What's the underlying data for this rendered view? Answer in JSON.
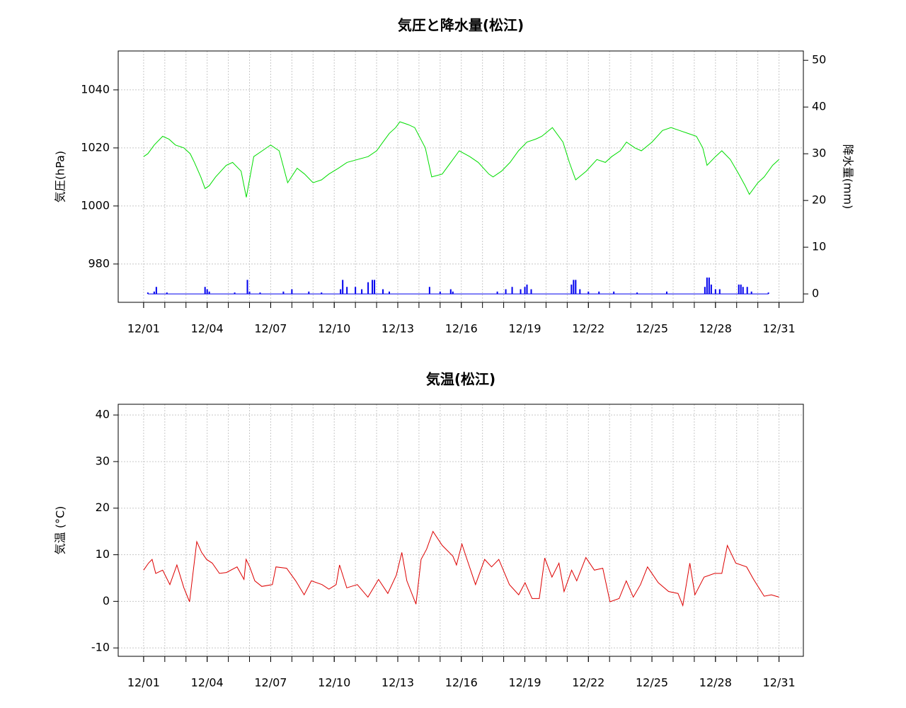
{
  "chart_data": [
    {
      "type": "line",
      "title": "気圧と降水量(松江)",
      "ylabel": "気圧(hPa)",
      "y2label": "降水量(mm)",
      "grid": true,
      "xlim": [
        -1.2,
        31.15
      ],
      "ylim": [
        966.8,
        1053.4
      ],
      "y2lim": [
        -1.8,
        52
      ],
      "xticks": [
        {
          "value": 0,
          "label": "12/01"
        },
        {
          "value": 3,
          "label": "12/04"
        },
        {
          "value": 6,
          "label": "12/07"
        },
        {
          "value": 9,
          "label": "12/10"
        },
        {
          "value": 12,
          "label": "12/13"
        },
        {
          "value": 15,
          "label": "12/16"
        },
        {
          "value": 18,
          "label": "12/19"
        },
        {
          "value": 21,
          "label": "12/22"
        },
        {
          "value": 24,
          "label": "12/25"
        },
        {
          "value": 27,
          "label": "12/28"
        },
        {
          "value": 30,
          "label": "12/31"
        }
      ],
      "xminorticks": [
        0,
        1,
        2,
        3,
        4,
        5,
        6,
        7,
        8,
        9,
        10,
        11,
        12,
        13,
        14,
        15,
        16,
        17,
        18,
        19,
        20,
        21,
        22,
        23,
        24,
        25,
        26,
        27,
        28,
        29,
        30
      ],
      "yticks": [
        980,
        1000,
        1020,
        1040
      ],
      "y2ticks": [
        0,
        10,
        20,
        30,
        40,
        50
      ],
      "series": [
        {
          "style": "line",
          "color": "#00dd00",
          "x": [
            0,
            0.2,
            0.5,
            0.9,
            1.2,
            1.5,
            1.9,
            2.2,
            2.4,
            2.7,
            2.9,
            3.1,
            3.4,
            3.9,
            4.2,
            4.6,
            4.85,
            5.2,
            5.6,
            6,
            6.4,
            6.8,
            7.25,
            7.6,
            8,
            8.4,
            8.75,
            9.2,
            9.6,
            10.1,
            10.6,
            11,
            11.3,
            11.6,
            11.9,
            12.1,
            12.5,
            12.8,
            13.3,
            13.6,
            14.1,
            14.5,
            14.9,
            15.4,
            15.8,
            16.3,
            16.5,
            16.9,
            17.3,
            17.7,
            18.1,
            18.5,
            18.8,
            19.3,
            19.8,
            20.1,
            20.4,
            20.9,
            21.4,
            21.8,
            22.1,
            22.5,
            22.8,
            23.2,
            23.5,
            24,
            24.5,
            24.9,
            25.3,
            25.7,
            26.1,
            26.4,
            26.6,
            27,
            27.3,
            27.7,
            28.1,
            28.4,
            28.6,
            29,
            29.3,
            29.7,
            30
          ],
          "values": [
            1017,
            1018,
            1021,
            1024,
            1023,
            1021,
            1020,
            1018,
            1015,
            1010,
            1006,
            1007,
            1010,
            1014,
            1015,
            1012,
            1003,
            1017,
            1019,
            1021,
            1019,
            1008,
            1013,
            1011,
            1008,
            1009,
            1011,
            1013,
            1015,
            1016,
            1017,
            1019,
            1022,
            1025,
            1027,
            1029,
            1028,
            1027,
            1020,
            1010,
            1011,
            1015,
            1019,
            1017,
            1015,
            1011,
            1010,
            1012,
            1015,
            1019,
            1022,
            1023,
            1024,
            1027,
            1022,
            1015,
            1009,
            1012,
            1016,
            1015,
            1017,
            1019,
            1022,
            1020,
            1019,
            1022,
            1026,
            1027,
            1026,
            1025,
            1024,
            1020,
            1014,
            1017,
            1019,
            1016,
            1011,
            1007,
            1004,
            1008,
            1010,
            1014,
            1016
          ]
        },
        {
          "style": "bars",
          "axis": "y2",
          "color": "#0000ee",
          "x": [
            0.2,
            0.5,
            0.6,
            1.1,
            2.9,
            3.0,
            3.1,
            4.3,
            4.9,
            5.0,
            5.5,
            6.6,
            7.0,
            7.8,
            8.4,
            9.3,
            9.4,
            9.6,
            10.0,
            10.3,
            10.6,
            10.8,
            10.9,
            11.3,
            11.6,
            13.5,
            14.0,
            14.5,
            14.6,
            16.7,
            17.1,
            17.4,
            17.8,
            18.0,
            18.1,
            18.3,
            20.2,
            20.3,
            20.4,
            20.6,
            21.0,
            21.5,
            22.2,
            23.3,
            24.7,
            26.5,
            26.6,
            26.7,
            26.8,
            27.0,
            27.2,
            28.1,
            28.2,
            28.3,
            28.5,
            28.7,
            29.5
          ],
          "values": [
            0.3,
            0.5,
            1.5,
            0.3,
            1.5,
            1,
            0.5,
            0.3,
            3,
            0.5,
            0.3,
            0.5,
            1,
            0.5,
            0.3,
            1,
            3,
            1.5,
            1.5,
            1,
            2.5,
            3,
            3,
            1,
            0.5,
            1.5,
            0.5,
            1,
            0.5,
            0.5,
            1,
            1.5,
            1,
            1.5,
            2,
            1,
            2,
            3,
            3,
            1,
            0.5,
            0.5,
            0.5,
            0.3,
            0.5,
            1.5,
            3.5,
            3.5,
            2,
            1,
            1,
            2,
            2,
            1.5,
            1.5,
            0.5,
            0.3
          ]
        }
      ]
    },
    {
      "type": "line",
      "title": "気温(松江)",
      "ylabel": "気温 (°C)",
      "grid": true,
      "xlim": [
        -1.2,
        31.15
      ],
      "ylim": [
        -11.8,
        42.3
      ],
      "xticks": [
        {
          "value": 0,
          "label": "12/01"
        },
        {
          "value": 3,
          "label": "12/04"
        },
        {
          "value": 6,
          "label": "12/07"
        },
        {
          "value": 9,
          "label": "12/10"
        },
        {
          "value": 12,
          "label": "12/13"
        },
        {
          "value": 15,
          "label": "12/16"
        },
        {
          "value": 18,
          "label": "12/19"
        },
        {
          "value": 21,
          "label": "12/22"
        },
        {
          "value": 24,
          "label": "12/25"
        },
        {
          "value": 27,
          "label": "12/28"
        },
        {
          "value": 30,
          "label": "12/31"
        }
      ],
      "xminorticks": [
        0,
        1,
        2,
        3,
        4,
        5,
        6,
        7,
        8,
        9,
        10,
        11,
        12,
        13,
        14,
        15,
        16,
        17,
        18,
        19,
        20,
        21,
        22,
        23,
        24,
        25,
        26,
        27,
        28,
        29,
        30
      ],
      "yticks": [
        -10,
        0,
        10,
        20,
        30,
        40
      ],
      "series": [
        {
          "style": "line",
          "color": "#dd0000",
          "x": [
            0,
            0.23,
            0.4,
            0.57,
            0.9,
            1.24,
            1.57,
            1.9,
            2.17,
            2.51,
            2.74,
            2.97,
            3.24,
            3.58,
            3.91,
            4.41,
            4.74,
            4.84,
            5.01,
            5.25,
            5.58,
            6.08,
            6.25,
            6.75,
            7.18,
            7.58,
            7.92,
            8.42,
            8.75,
            9.09,
            9.25,
            9.59,
            10.09,
            10.59,
            11.09,
            11.53,
            11.93,
            12.19,
            12.43,
            12.86,
            13.1,
            13.36,
            13.66,
            14.1,
            14.6,
            14.77,
            15.03,
            15.27,
            15.67,
            16.1,
            16.43,
            16.77,
            17.27,
            17.71,
            18.01,
            18.34,
            18.68,
            18.94,
            19.28,
            19.61,
            19.85,
            20.21,
            20.45,
            20.88,
            21.28,
            21.68,
            22.02,
            22.45,
            22.79,
            23.12,
            23.46,
            23.79,
            24.3,
            24.79,
            25.23,
            25.46,
            25.79,
            26.03,
            26.46,
            26.96,
            27.3,
            27.56,
            27.96,
            28.47,
            28.8,
            29.3,
            29.64,
            30
          ],
          "values": [
            6.7,
            8.2,
            9,
            6,
            6.7,
            3.6,
            7.8,
            2.9,
            -0.1,
            12.8,
            10.5,
            9,
            8.2,
            6,
            6.2,
            7.4,
            4.7,
            9,
            7.4,
            4.4,
            3.2,
            3.6,
            7.4,
            7.1,
            4.4,
            1.4,
            4.4,
            3.6,
            2.6,
            3.6,
            7.8,
            2.9,
            3.6,
            0.9,
            4.7,
            1.7,
            5.6,
            10.5,
            4.4,
            -0.6,
            9,
            11.2,
            15,
            12,
            9.7,
            7.8,
            12.3,
            9,
            3.6,
            9,
            7.4,
            9,
            3.6,
            1.4,
            4,
            0.6,
            0.6,
            9.3,
            5.2,
            8.2,
            2.1,
            6.7,
            4.4,
            9.4,
            6.7,
            7.1,
            -0.1,
            0.6,
            4.4,
            0.9,
            3.6,
            7.4,
            4,
            2.1,
            1.7,
            -0.9,
            8.2,
            1.4,
            5.2,
            6,
            6,
            12,
            8.2,
            7.4,
            4.7,
            1.1,
            1.4,
            0.9
          ]
        }
      ]
    }
  ]
}
